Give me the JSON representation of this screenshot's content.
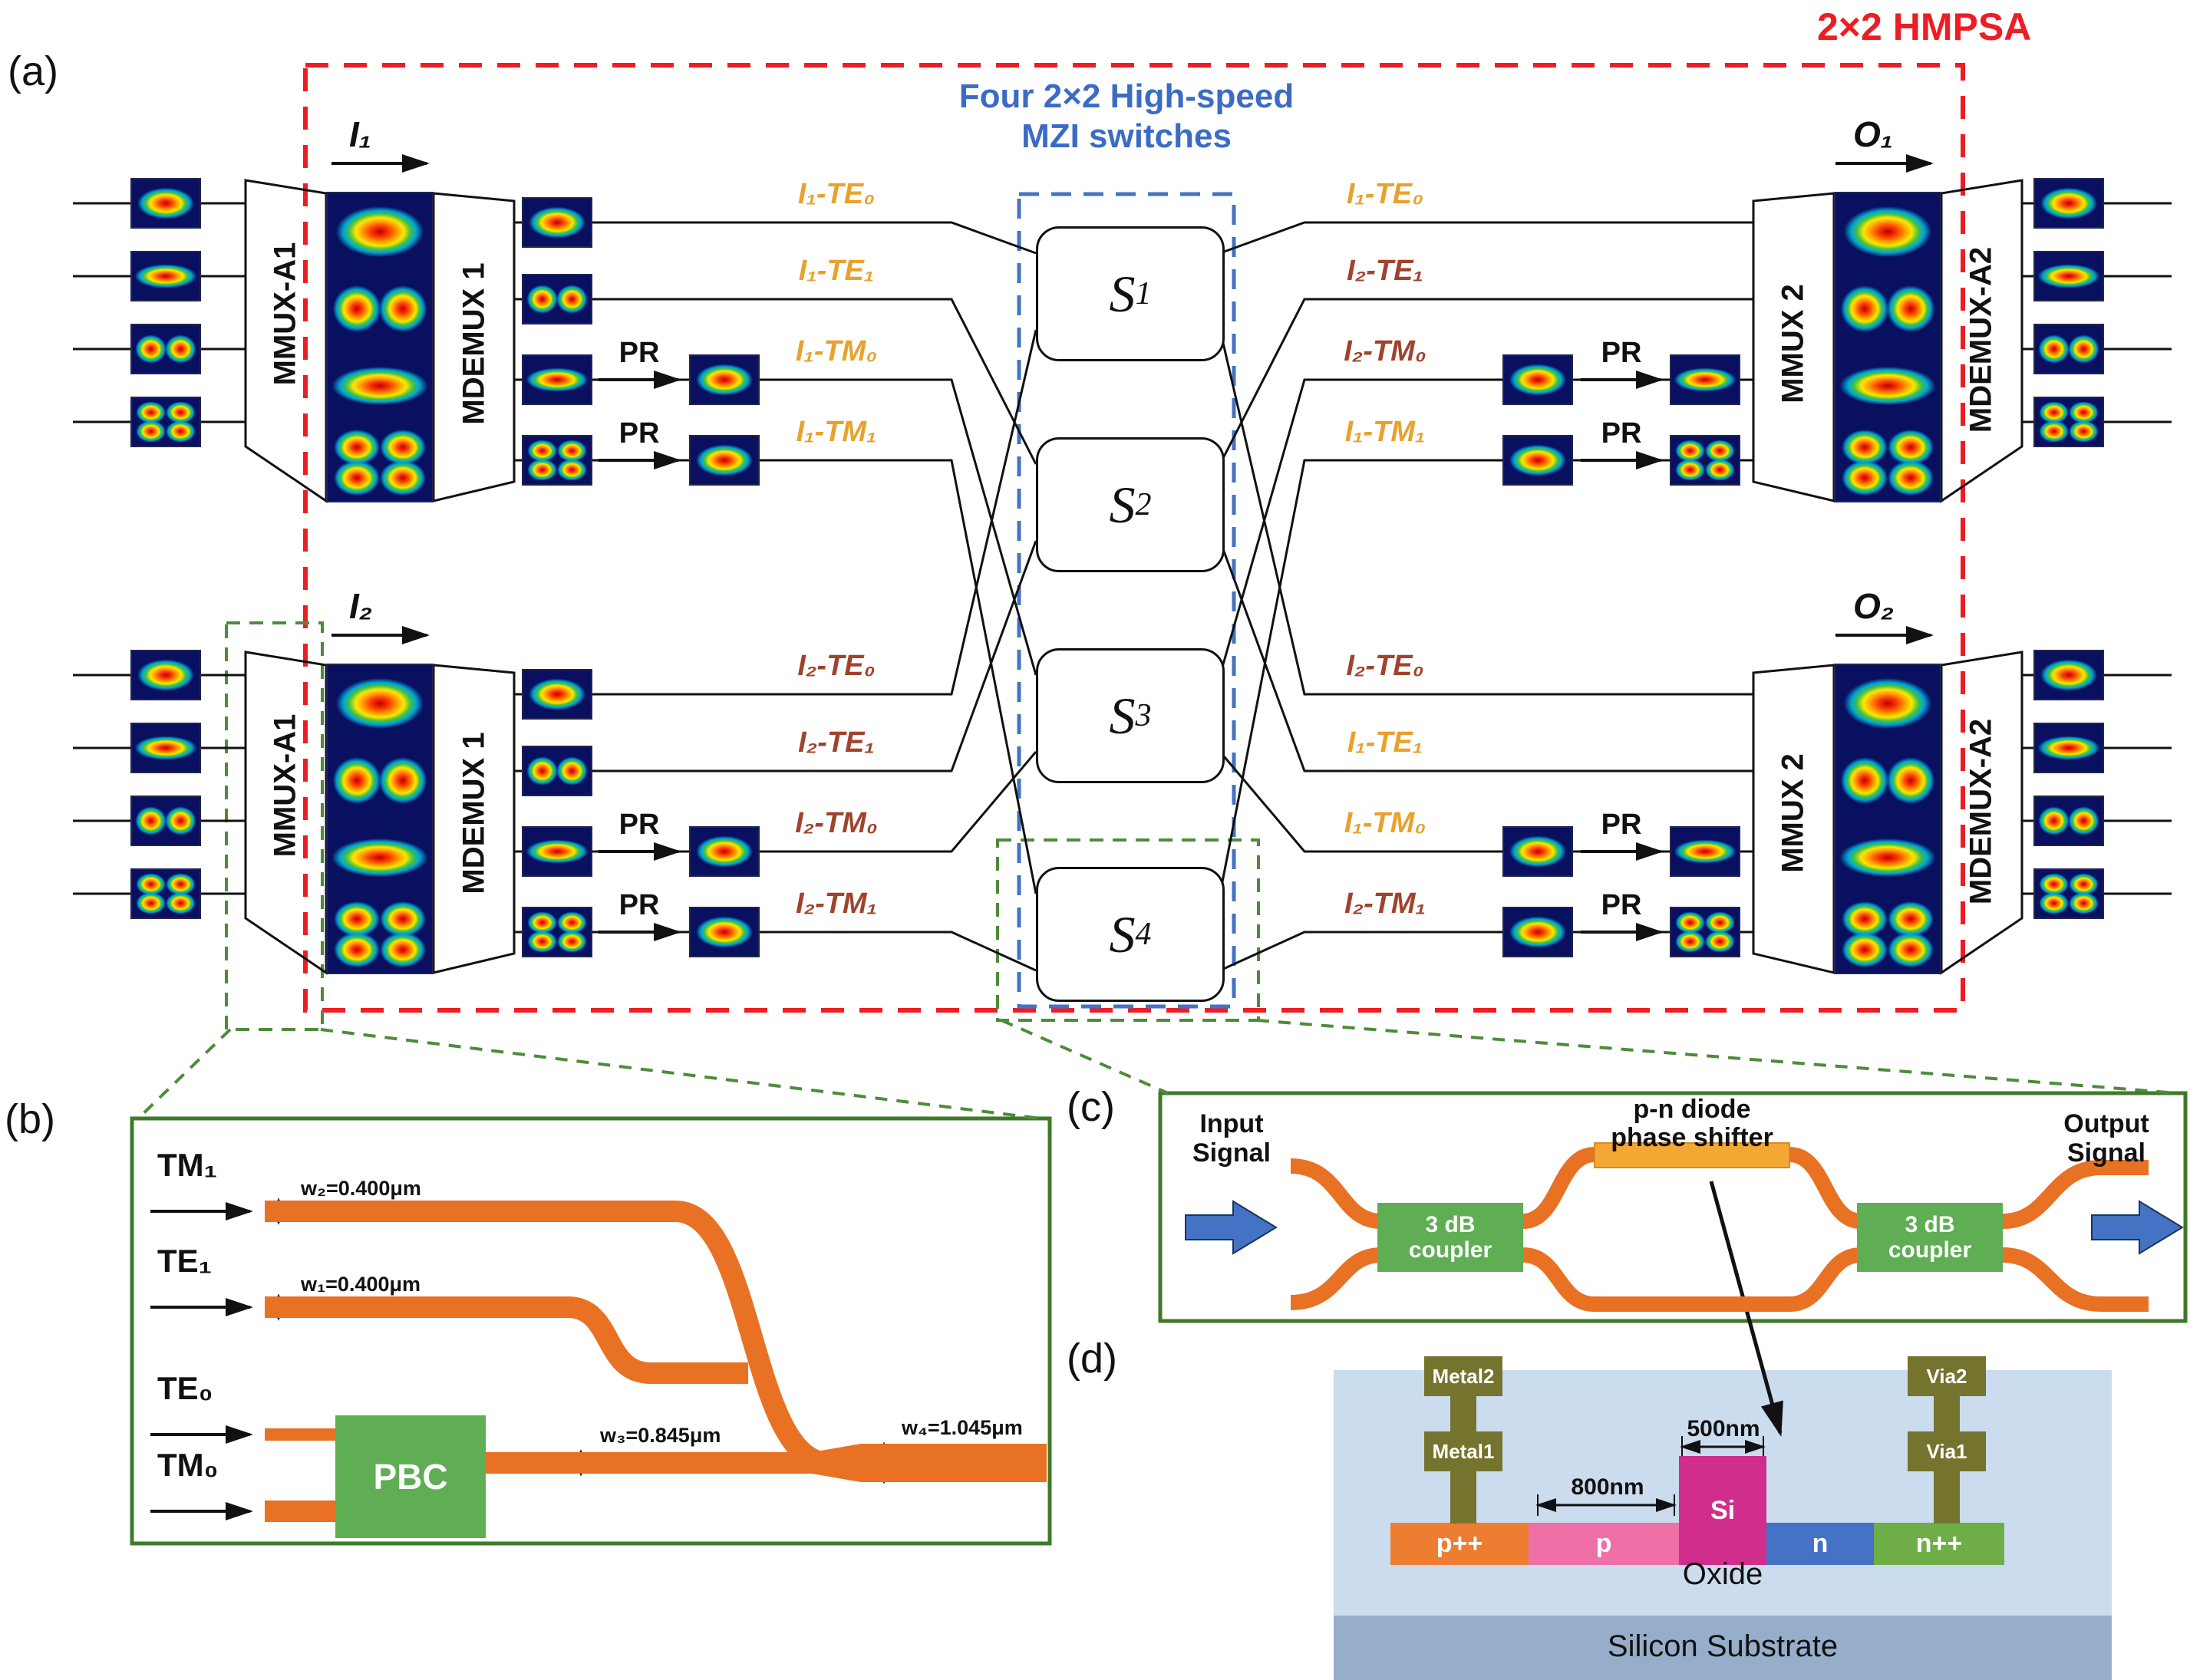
{
  "colors": {
    "hmpsa_red": "#EE1D23",
    "mzi_blue": "#3B6CC5",
    "i1_orange": "#E8A22C",
    "i2_brown": "#A0432D",
    "waveguide_orange": "#E87124",
    "coupler_green": "#5FAE54",
    "phase_shifter_yellow": "#F4A733",
    "detail_box_green": "#3F7A28",
    "metal_olive": "#75742F",
    "p_plus_orange": "#ED7D31",
    "p_pink": "#EF6FA7",
    "si_magenta": "#D12D8C",
    "n_blue": "#4472C4",
    "n_plus_green": "#6FAE46",
    "oxide_blue": "#CBDCEF",
    "substrate_blue": "#97AECB"
  },
  "panel_a": {
    "label": "(a)",
    "title": "2×2 HMPSA",
    "mzi_caption": {
      "line1": "Four 2×2 High-speed",
      "line2": "MZI switches"
    },
    "switches": [
      {
        "base": "S",
        "sub": "1"
      },
      {
        "base": "S",
        "sub": "2"
      },
      {
        "base": "S",
        "sub": "3"
      },
      {
        "base": "S",
        "sub": "4"
      }
    ],
    "io": {
      "i1": "I₁",
      "i2": "I₂",
      "o1": "O₁",
      "o2": "O₂"
    },
    "mux_labels": {
      "mmux_a1": "MMUX-A1",
      "mdemux_1": "MDEMUX 1",
      "mmux_2": "MMUX 2",
      "mdemux_a2": "MDEMUX-A2"
    },
    "pr_label": "PR",
    "lanes": {
      "left_top": [
        {
          "label": "I₁-TE₀"
        },
        {
          "label": "I₁-TE₁"
        },
        {
          "label": "I₁-TM₀"
        },
        {
          "label": "I₁-TM₁"
        }
      ],
      "left_bottom": [
        {
          "label": "I₂-TE₀"
        },
        {
          "label": "I₂-TE₁"
        },
        {
          "label": "I₂-TM₀"
        },
        {
          "label": "I₂-TM₁"
        }
      ],
      "right_top": [
        {
          "label": "I₁-TE₀"
        },
        {
          "label": "I₂-TE₁"
        },
        {
          "label": "I₂-TM₀"
        },
        {
          "label": "I₁-TM₁"
        }
      ],
      "right_bottom": [
        {
          "label": "I₂-TE₀"
        },
        {
          "label": "I₁-TE₁"
        },
        {
          "label": "I₁-TM₀"
        },
        {
          "label": "I₂-TM₁"
        }
      ]
    }
  },
  "panel_b": {
    "label": "(b)",
    "ports": {
      "tm1": "TM₁",
      "te1": "TE₁",
      "te0": "TE₀",
      "tm0": "TM₀"
    },
    "pbc_label": "PBC",
    "annotations": {
      "w2": "w₂=0.400μm",
      "w1": "w₁=0.400μm",
      "w3": "w₃=0.845μm",
      "w4": "w₄=1.045μm"
    }
  },
  "panel_c": {
    "label": "(c)",
    "input_signal": "Input Signal",
    "output_signal": "Output Signal",
    "coupler_label": "3 dB coupler",
    "phase_shifter": {
      "line1": "p-n diode",
      "line2": "phase shifter"
    }
  },
  "panel_d": {
    "label": "(d)",
    "regions": {
      "p_plus": "p++",
      "p": "p",
      "si": "Si",
      "n": "n",
      "n_plus": "n++",
      "oxide": "Oxide",
      "substrate": "Silicon Substrate"
    },
    "metals": {
      "metal2": "Metal2",
      "metal1": "Metal1",
      "via2": "Via2",
      "via1": "Via1"
    },
    "dims": {
      "d800": "800nm",
      "d500": "500nm"
    }
  }
}
